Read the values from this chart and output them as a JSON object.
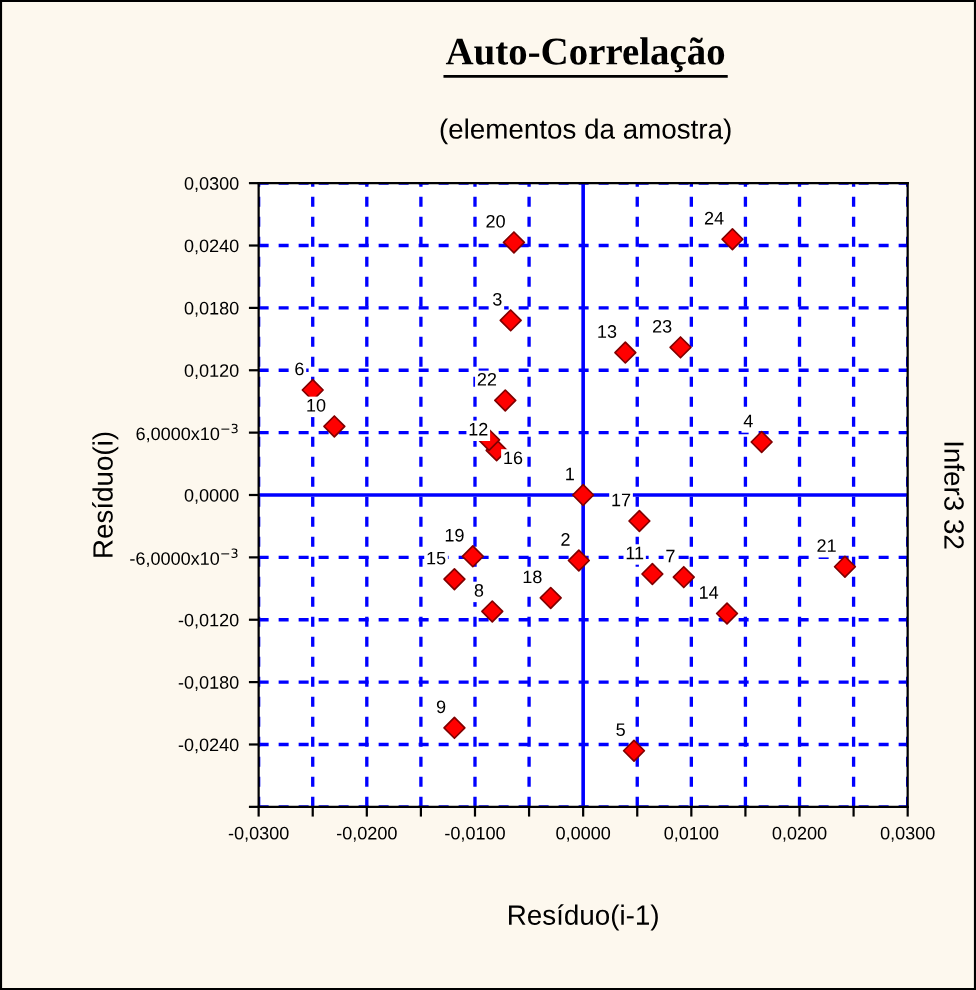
{
  "chart_data": {
    "type": "scatter",
    "title": "Auto-Correlação",
    "subtitle": "(elementos da amostra)",
    "xlabel": "Resíduo(i-1)",
    "ylabel": "Resíduo(i)",
    "annotations": [
      "Infer3 32",
      {
        "text": "1",
        "x": 0.0,
        "y": 0.0
      },
      {
        "text": "2",
        "x": -0.0004,
        "y": -0.0063
      },
      {
        "text": "3",
        "x": -0.0067,
        "y": 0.0168
      },
      {
        "text": "4",
        "x": 0.0165,
        "y": 0.0051
      },
      {
        "text": "5",
        "x": 0.0047,
        "y": -0.0246
      },
      {
        "text": "6",
        "x": -0.025,
        "y": 0.0101
      },
      {
        "text": "7",
        "x": 0.0093,
        "y": -0.0079
      },
      {
        "text": "8",
        "x": -0.0084,
        "y": -0.0112
      },
      {
        "text": "9",
        "x": -0.0119,
        "y": -0.0224
      },
      {
        "text": "10",
        "x": -0.023,
        "y": 0.0066
      },
      {
        "text": "11",
        "x": 0.0064,
        "y": -0.0076
      },
      {
        "text": "12",
        "x": -0.008,
        "y": 0.0043
      },
      {
        "text": "13",
        "x": 0.0039,
        "y": 0.0137
      },
      {
        "text": "14",
        "x": 0.0133,
        "y": -0.0114
      },
      {
        "text": "15",
        "x": -0.0119,
        "y": -0.0081
      },
      {
        "text": "16",
        "x": -0.0087,
        "y": 0.0053
      },
      {
        "text": "17",
        "x": 0.0052,
        "y": -0.0025
      },
      {
        "text": "18",
        "x": -0.003,
        "y": -0.0099
      },
      {
        "text": "19",
        "x": -0.0102,
        "y": -0.0059
      },
      {
        "text": "20",
        "x": -0.0064,
        "y": 0.0243
      },
      {
        "text": "21",
        "x": 0.0242,
        "y": -0.0069
      },
      {
        "text": "22",
        "x": -0.0072,
        "y": 0.0091
      },
      {
        "text": "23",
        "x": 0.009,
        "y": 0.0142
      },
      {
        "text": "24",
        "x": 0.0138,
        "y": 0.0246
      }
    ],
    "series": [
      {
        "color": "#ff0000",
        "x": [
          0.0,
          -0.0004,
          -0.0067,
          0.0165,
          0.0047,
          -0.025,
          0.0093,
          -0.0084,
          -0.0119,
          -0.023,
          0.0064,
          -0.008,
          0.0039,
          0.0133,
          -0.0119,
          -0.0087,
          0.0052,
          -0.003,
          -0.0102,
          -0.0064,
          0.0242,
          -0.0072,
          0.009,
          0.0138
        ],
        "values": [
          0.0,
          -0.0063,
          0.0168,
          0.0051,
          -0.0246,
          0.0101,
          -0.0079,
          -0.0112,
          -0.0224,
          0.0066,
          -0.0076,
          0.0043,
          0.0137,
          -0.0114,
          -0.0081,
          0.0053,
          -0.0025,
          -0.0099,
          -0.0059,
          0.0243,
          -0.0069,
          0.0091,
          0.0142,
          0.0246
        ]
      }
    ],
    "marker": "diamond",
    "grid": true,
    "xlim": [
      -0.03,
      0.03
    ],
    "ylim": [
      -0.03,
      0.03
    ],
    "xticks": [
      {
        "value": -0.03,
        "label": "-0,0300"
      },
      {
        "value": -0.025,
        "label": null
      },
      {
        "value": -0.02,
        "label": "-0,0200"
      },
      {
        "value": -0.015,
        "label": null
      },
      {
        "value": -0.01,
        "label": "-0,0100"
      },
      {
        "value": -0.005,
        "label": null
      },
      {
        "value": 0,
        "label": "0,0000"
      },
      {
        "value": 0.005,
        "label": null
      },
      {
        "value": 0.01,
        "label": "0,0100"
      },
      {
        "value": 0.015,
        "label": null
      },
      {
        "value": 0.02,
        "label": "0,0200"
      },
      {
        "value": 0.025,
        "label": null
      },
      {
        "value": 0.03,
        "label": "0,0300"
      }
    ],
    "yticks": [
      {
        "value": -0.03,
        "label": null
      },
      {
        "value": -0.024,
        "label": "-0,0240"
      },
      {
        "value": -0.018,
        "label": "-0,0180"
      },
      {
        "value": -0.012,
        "label": "-0,0120"
      },
      {
        "value": -0.006,
        "label": "-6,0000x10$^{−3}$"
      },
      {
        "value": 0,
        "label": "0,0000"
      },
      {
        "value": 0.006,
        "label": "6,0000x10$^{−3}$"
      },
      {
        "value": 0.012,
        "label": "0,0120"
      },
      {
        "value": 0.018,
        "label": "0,0180"
      },
      {
        "value": 0.024,
        "label": "0,0240"
      },
      {
        "value": 0.03,
        "label": "0,0300"
      }
    ]
  }
}
